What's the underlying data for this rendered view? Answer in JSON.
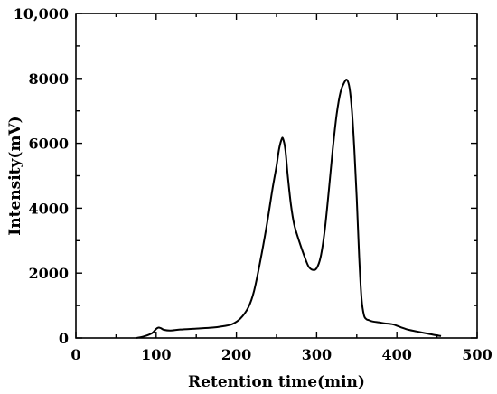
{
  "chart_data": {
    "type": "line",
    "title": "",
    "xlabel": "Retention time(min)",
    "ylabel": "Intensity(mV)",
    "xlim": [
      0,
      500
    ],
    "ylim": [
      0,
      10000
    ],
    "x_ticks": [
      0,
      100,
      200,
      300,
      400,
      500
    ],
    "x_tick_labels": [
      "0",
      "100",
      "200",
      "300",
      "400",
      "500"
    ],
    "y_ticks": [
      0,
      2000,
      4000,
      6000,
      8000,
      10000
    ],
    "y_tick_labels": [
      "0",
      "2000",
      "4000",
      "6000",
      "8000",
      "10,000"
    ],
    "grid": false,
    "legend": "none",
    "line_color": "#000000",
    "series": [
      {
        "x": [
          75,
          85,
          95,
          100,
          103,
          106,
          110,
          118,
          130,
          150,
          170,
          185,
          195,
          205,
          215,
          222,
          230,
          238,
          245,
          250,
          253,
          256,
          258,
          261,
          264,
          268,
          272,
          278,
          285,
          290,
          295,
          300,
          305,
          310,
          315,
          320,
          325,
          330,
          335,
          338,
          341,
          344,
          347,
          350,
          353,
          356,
          359,
          362,
          365,
          368,
          372,
          378,
          385,
          395,
          405,
          415,
          425,
          435,
          445,
          455
        ],
        "y": [
          0,
          50,
          150,
          280,
          320,
          300,
          250,
          230,
          260,
          290,
          320,
          370,
          430,
          600,
          950,
          1450,
          2400,
          3500,
          4600,
          5300,
          5800,
          6100,
          6150,
          5800,
          5000,
          4100,
          3500,
          3000,
          2500,
          2200,
          2100,
          2150,
          2500,
          3300,
          4500,
          5800,
          6900,
          7600,
          7900,
          7950,
          7700,
          7000,
          5800,
          4300,
          2500,
          1200,
          700,
          580,
          550,
          520,
          500,
          480,
          450,
          420,
          330,
          250,
          200,
          150,
          100,
          60
        ]
      }
    ]
  }
}
